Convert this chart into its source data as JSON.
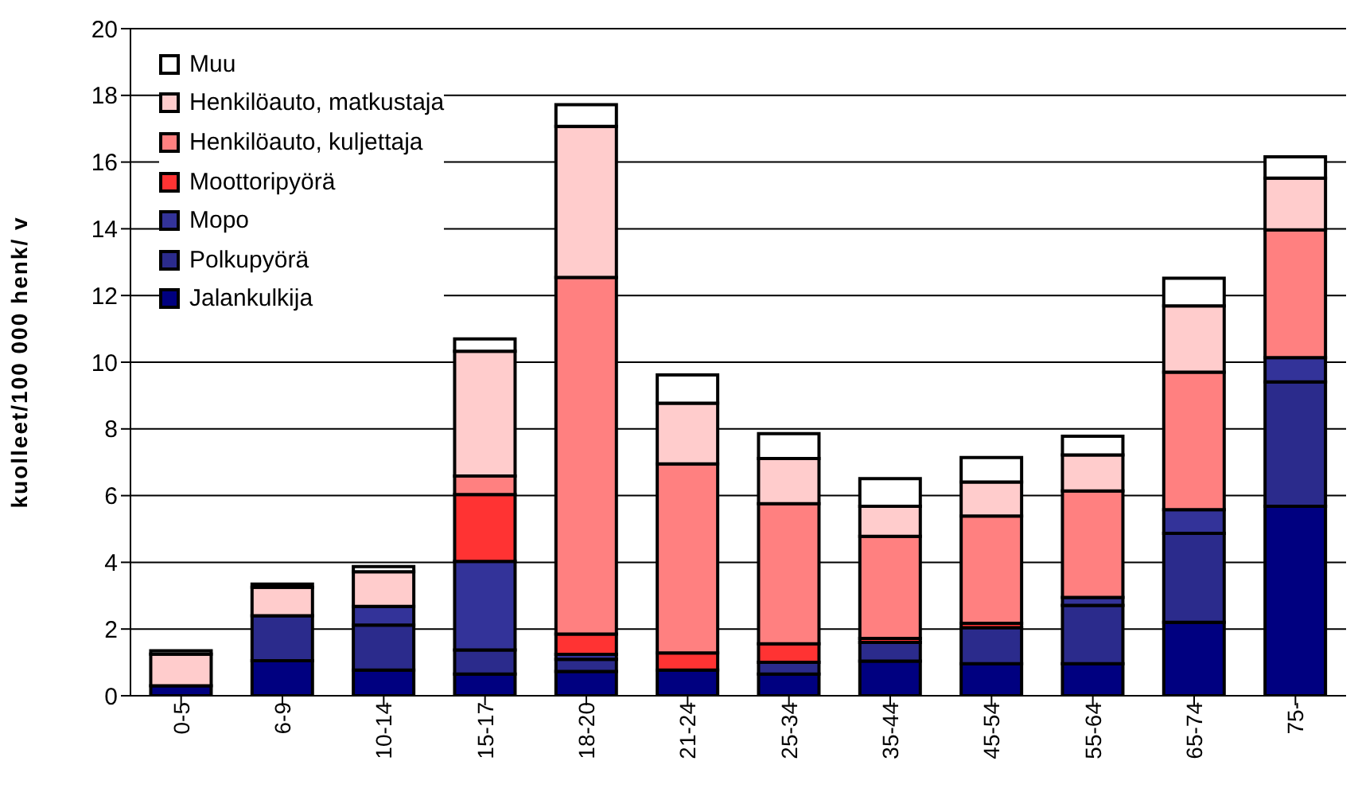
{
  "chart_data": {
    "type": "bar",
    "stacked": true,
    "ylabel": "kuolleet/100 000 henk/ v",
    "categories": [
      "0-5",
      "6-9",
      "10-14",
      "15-17",
      "18-20",
      "21-24",
      "25-34",
      "35-44",
      "45-54",
      "55-64",
      "65-74",
      "75-"
    ],
    "series": [
      {
        "name": "Jalankulkija",
        "color": "#000080",
        "values": [
          0.3,
          1.05,
          0.77,
          0.65,
          0.73,
          0.77,
          0.65,
          1.04,
          0.96,
          0.96,
          2.2,
          5.68
        ]
      },
      {
        "name": "Polkupyörä",
        "color": "#2b2b8c",
        "values": [
          null,
          1.35,
          1.35,
          0.72,
          0.36,
          0,
          0.35,
          0.56,
          1.08,
          1.75,
          2.67,
          3.73
        ]
      },
      {
        "name": "Mopo",
        "color": "#333399",
        "values": [
          0,
          0,
          0.56,
          2.66,
          0.15,
          0,
          0,
          0,
          0,
          0.24,
          0.71,
          0.73
        ]
      },
      {
        "name": "Moottoripyörä",
        "color": "#ff3333",
        "values": [
          0,
          0,
          0,
          2.0,
          0.61,
          0.51,
          0.56,
          0.12,
          0.13,
          0,
          0,
          0
        ]
      },
      {
        "name": "Henkilöauto, kuljettaja",
        "color": "#ff8080",
        "values": [
          null,
          0,
          0,
          0.56,
          10.69,
          5.67,
          4.2,
          3.06,
          3.22,
          3.19,
          4.12,
          3.83
        ]
      },
      {
        "name": "Henkilöauto, matkustaja",
        "color": "#ffcccc",
        "values": [
          0.95,
          0.85,
          1.04,
          3.74,
          4.53,
          1.82,
          1.35,
          0.9,
          1.02,
          1.08,
          1.99,
          1.55
        ]
      },
      {
        "name": "Muu",
        "color": "#ffffff",
        "values": [
          0.1,
          0.1,
          0.15,
          0.37,
          0.65,
          0.85,
          0.75,
          0.83,
          0.73,
          0.56,
          0.83,
          0.64
        ]
      }
    ],
    "ylim": [
      0,
      20
    ],
    "yticks": [
      0,
      2,
      4,
      6,
      8,
      10,
      12,
      14,
      16,
      18,
      20
    ],
    "grid": "y",
    "legend": "top left"
  }
}
